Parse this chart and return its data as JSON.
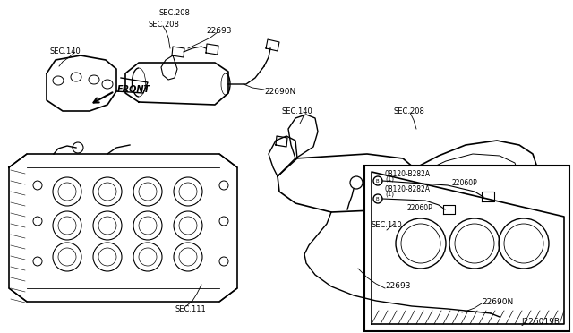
{
  "background_color": "#ffffff",
  "line_color": "#000000",
  "text_color": "#000000",
  "labels": {
    "front_arrow": "FRONT",
    "part_22693_top": "22693",
    "part_22690N_top": "22690N",
    "sec_140_top": "SEC.140",
    "sec_208_top": "SEC.208",
    "part_08120_B282A": "08120-B282A",
    "part_22060P_1": "22060P",
    "part_08120_8282A": "08120-8282A",
    "part_22060P_2": "22060P",
    "bracket_1": "(1)",
    "bracket_2": "(1)",
    "sec_110": "SEC.110",
    "sec_111": "SEC.111",
    "part_22690N_bot": "22690N",
    "part_22693_bot": "22693",
    "sec_140_bot": "SEC.140",
    "sec_208_bot": "SEC.208",
    "diagram_code": "J226019B"
  }
}
